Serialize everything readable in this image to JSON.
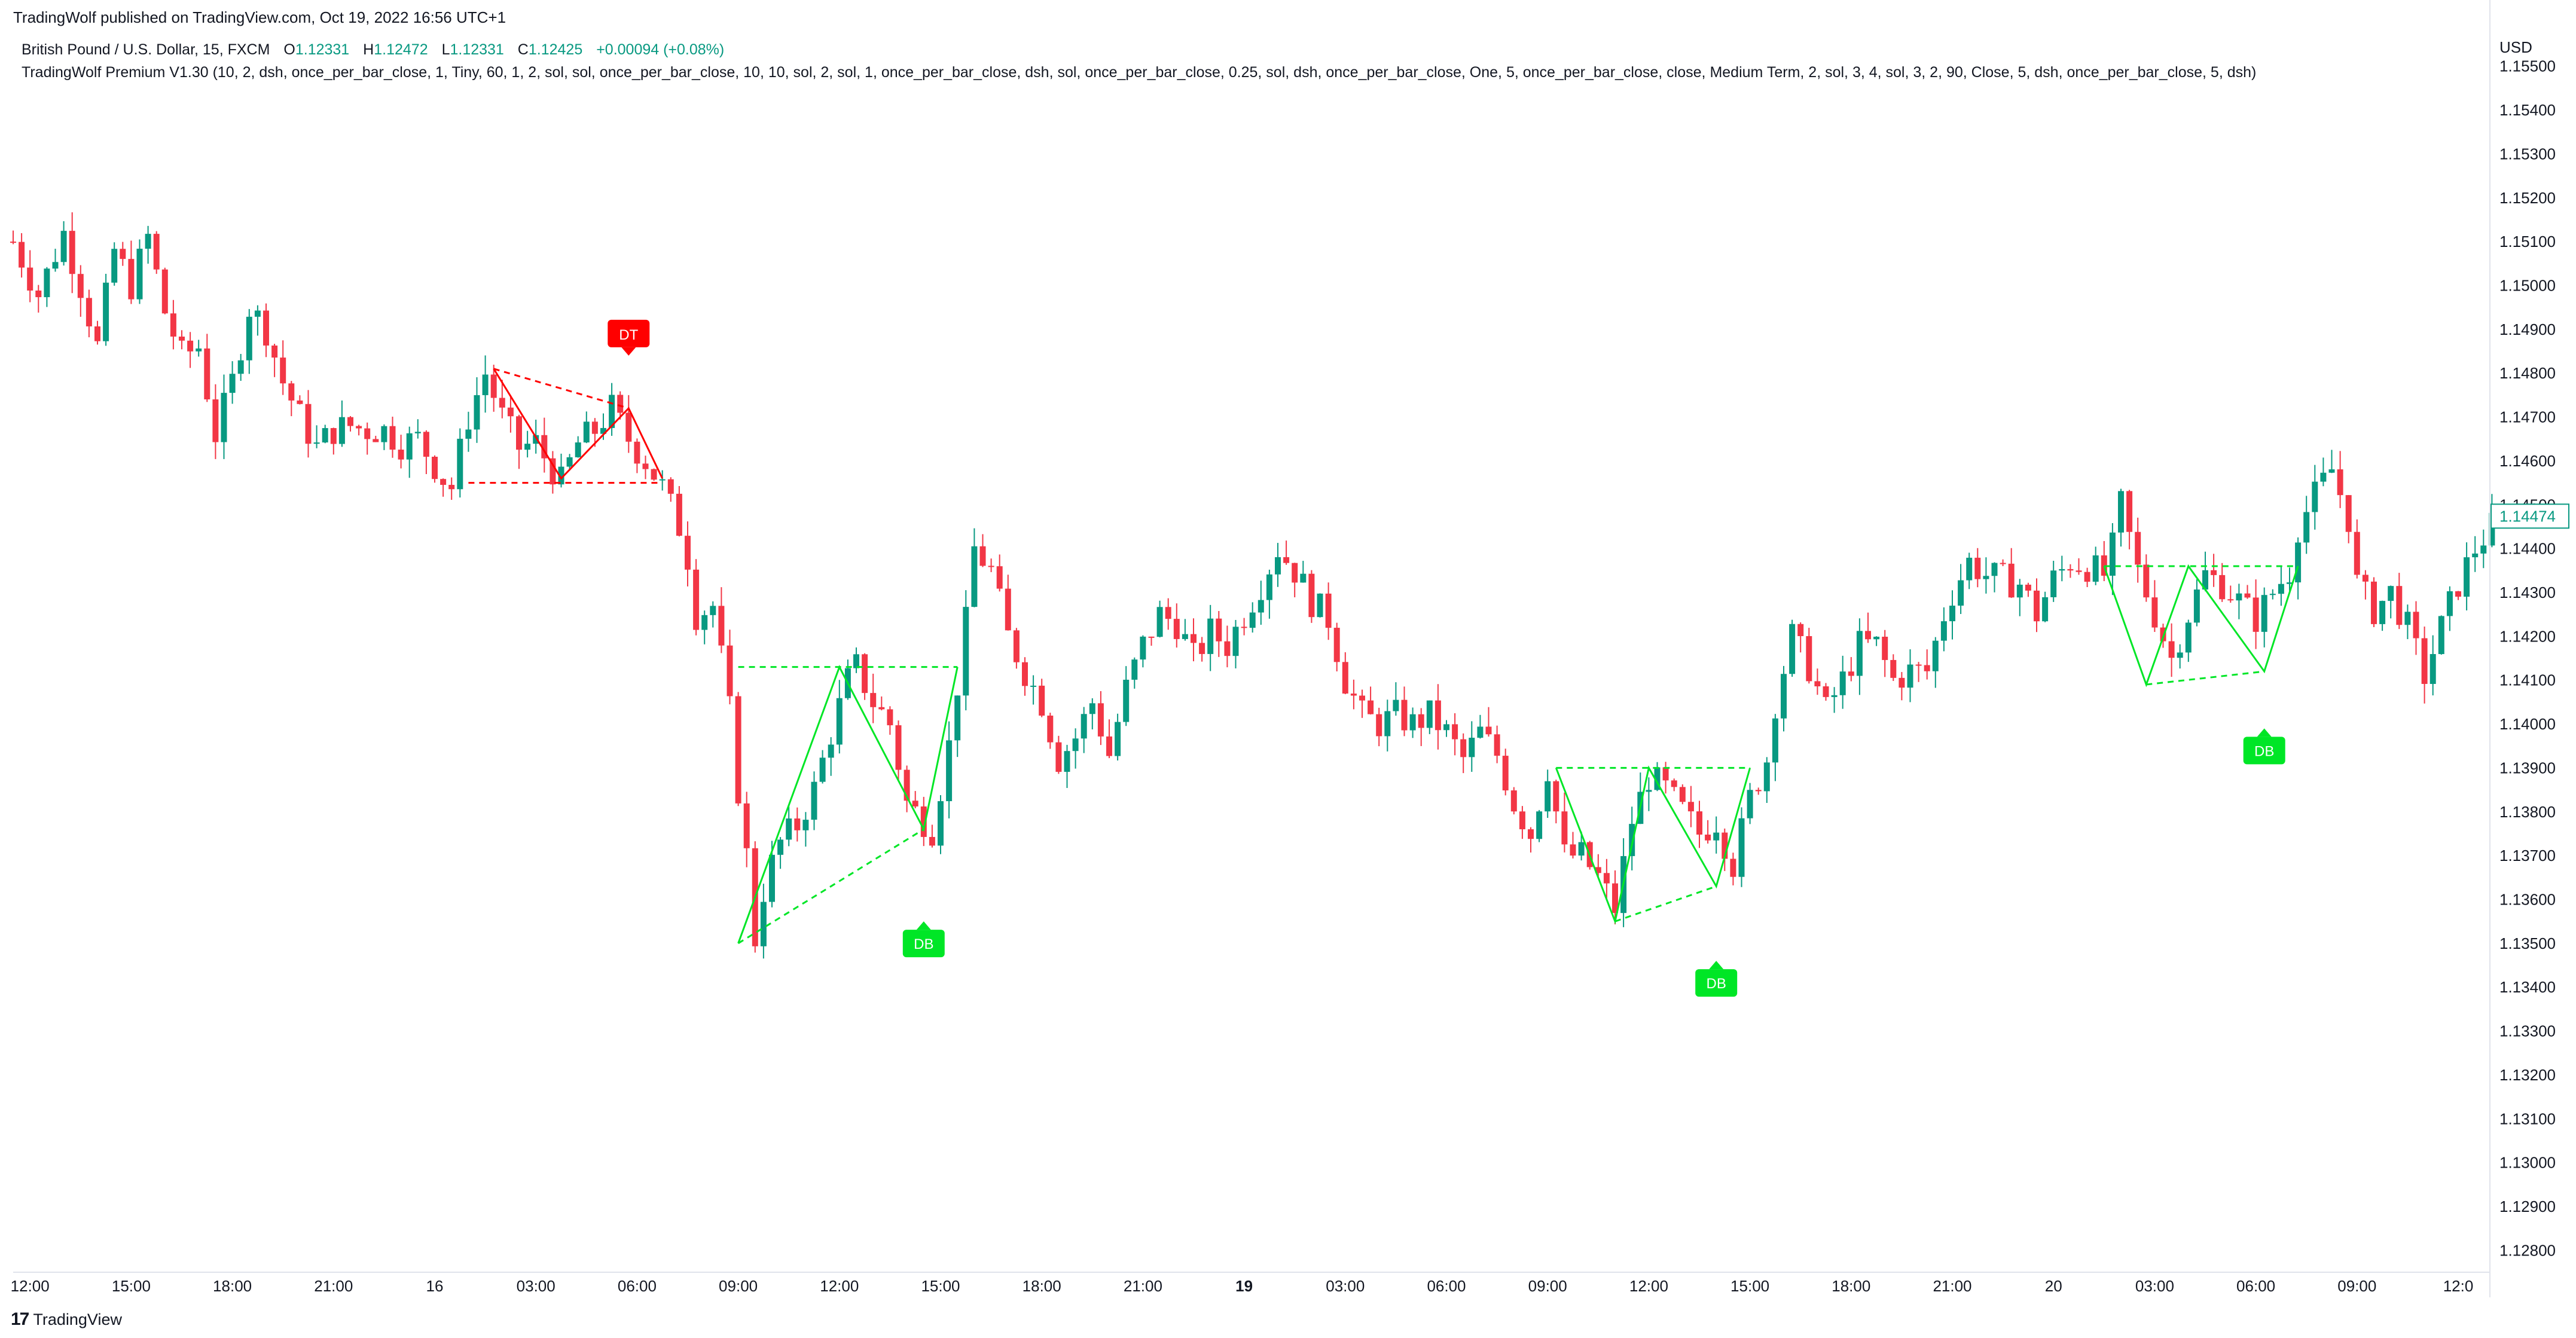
{
  "published_by": "TradingWolf published on TradingView.com, Oct 19, 2022 16:56 UTC+1",
  "symbol_line": "British Pound / U.S. Dollar, 15, FXCM",
  "ohlc": {
    "o_label": "O",
    "o": "1.12331",
    "h_label": "H",
    "h": "1.12472",
    "l_label": "L",
    "l": "1.12331",
    "c_label": "C",
    "c": "1.12425",
    "change": "+0.00094 (+0.08%)"
  },
  "indicator_line": "TradingWolf Premium V1.30 (10, 2, dsh, once_per_bar_close, 1, Tiny, 60, 1, 2, sol, sol, once_per_bar_close, 10, 10, sol, 2, sol, 1, once_per_bar_close, dsh, sol, once_per_bar_close, 0.25, sol, dsh, once_per_bar_close, One, 5, once_per_bar_close, close, Medium Term, 2, sol, 3, 4, sol, 3, 2, 90, Close, 5, dsh, once_per_bar_close, 5, dsh)",
  "footer_brand": "TradingView",
  "footer_logo": "17",
  "chart_data": {
    "type": "candlestick",
    "currency_label": "USD",
    "ylim": [
      1.1275,
      1.1561
    ],
    "y_ticks": [
      "1.15500",
      "1.15400",
      "1.15300",
      "1.15200",
      "1.15100",
      "1.15000",
      "1.14900",
      "1.14800",
      "1.14700",
      "1.14600",
      "1.14500",
      "1.14400",
      "1.14300",
      "1.14200",
      "1.14100",
      "1.14000",
      "1.13900",
      "1.13800",
      "1.13700",
      "1.13600",
      "1.13500",
      "1.13400",
      "1.13300",
      "1.13200",
      "1.13100",
      "1.13000",
      "1.12900",
      "1.12800"
    ],
    "x_ticks": [
      {
        "label": "12:00",
        "bar": 2,
        "bold": false
      },
      {
        "label": "15:00",
        "bar": 14,
        "bold": false
      },
      {
        "label": "18:00",
        "bar": 26,
        "bold": false
      },
      {
        "label": "21:00",
        "bar": 38,
        "bold": false
      },
      {
        "label": "16",
        "bar": 50,
        "bold": false
      },
      {
        "label": "03:00",
        "bar": 62,
        "bold": false
      },
      {
        "label": "06:00",
        "bar": 74,
        "bold": false
      },
      {
        "label": "09:00",
        "bar": 86,
        "bold": false
      },
      {
        "label": "12:00",
        "bar": 98,
        "bold": false
      },
      {
        "label": "15:00",
        "bar": 110,
        "bold": false
      },
      {
        "label": "18:00",
        "bar": 122,
        "bold": false
      },
      {
        "label": "21:00",
        "bar": 134,
        "bold": false
      },
      {
        "label": "19",
        "bar": 146,
        "bold": true
      },
      {
        "label": "03:00",
        "bar": 158,
        "bold": false
      },
      {
        "label": "06:00",
        "bar": 170,
        "bold": false
      },
      {
        "label": "09:00",
        "bar": 182,
        "bold": false
      },
      {
        "label": "12:00",
        "bar": 194,
        "bold": false
      },
      {
        "label": "15:00",
        "bar": 206,
        "bold": false
      },
      {
        "label": "18:00",
        "bar": 218,
        "bold": false
      },
      {
        "label": "21:00",
        "bar": 230,
        "bold": false
      },
      {
        "label": "20",
        "bar": 242,
        "bold": false
      },
      {
        "label": "03:00",
        "bar": 254,
        "bold": false
      },
      {
        "label": "06:00",
        "bar": 266,
        "bold": false
      },
      {
        "label": "09:00",
        "bar": 278,
        "bold": false
      },
      {
        "label": "12:0",
        "bar": 290,
        "bold": false
      }
    ],
    "last_price": "1.14474",
    "colors": {
      "up": "#089981",
      "down": "#f23645",
      "bull_pattern": "#00e626",
      "bear_pattern": "#ff0000",
      "grid_text": "#131722"
    },
    "path_points": [
      [
        0,
        1.151
      ],
      [
        3,
        1.1498
      ],
      [
        6,
        1.1512
      ],
      [
        8,
        1.15
      ],
      [
        10,
        1.1486
      ],
      [
        12,
        1.1508
      ],
      [
        14,
        1.15
      ],
      [
        16,
        1.1511
      ],
      [
        18,
        1.1494
      ],
      [
        20,
        1.1484
      ],
      [
        22,
        1.1486
      ],
      [
        24,
        1.1466
      ],
      [
        26,
        1.1478
      ],
      [
        28,
        1.1495
      ],
      [
        30,
        1.149
      ],
      [
        32,
        1.1478
      ],
      [
        34,
        1.147
      ],
      [
        36,
        1.1463
      ],
      [
        38,
        1.1467
      ],
      [
        40,
        1.1468
      ],
      [
        42,
        1.1467
      ],
      [
        44,
        1.1467
      ],
      [
        46,
        1.1464
      ],
      [
        48,
        1.1465
      ],
      [
        51,
        1.1456
      ],
      [
        52,
        1.1454
      ],
      [
        54,
        1.147
      ],
      [
        56,
        1.148
      ],
      [
        58,
        1.147
      ],
      [
        60,
        1.1463
      ],
      [
        62,
        1.1464
      ],
      [
        65,
        1.1455
      ],
      [
        67,
        1.1464
      ],
      [
        69,
        1.1467
      ],
      [
        71,
        1.1472
      ],
      [
        73,
        1.1465
      ],
      [
        75,
        1.146
      ],
      [
        77,
        1.1454
      ],
      [
        79,
        1.1445
      ],
      [
        80,
        1.1438
      ],
      [
        81,
        1.1425
      ],
      [
        83,
        1.1427
      ],
      [
        84,
        1.1415
      ],
      [
        85,
        1.1403
      ],
      [
        86,
        1.1385
      ],
      [
        87,
        1.137
      ],
      [
        88,
        1.1351
      ],
      [
        89,
        1.1362
      ],
      [
        90,
        1.1368
      ],
      [
        91,
        1.1373
      ],
      [
        93,
        1.1377
      ],
      [
        95,
        1.1385
      ],
      [
        97,
        1.1398
      ],
      [
        99,
        1.141
      ],
      [
        100,
        1.1413
      ],
      [
        102,
        1.1405
      ],
      [
        104,
        1.14
      ],
      [
        106,
        1.1382
      ],
      [
        108,
        1.1378
      ],
      [
        109,
        1.1376
      ],
      [
        111,
        1.1395
      ],
      [
        113,
        1.1423
      ],
      [
        114,
        1.144
      ],
      [
        116,
        1.1435
      ],
      [
        118,
        1.142
      ],
      [
        120,
        1.1412
      ],
      [
        122,
        1.1405
      ],
      [
        124,
        1.1392
      ],
      [
        126,
        1.1397
      ],
      [
        128,
        1.1405
      ],
      [
        130,
        1.1393
      ],
      [
        132,
        1.1408
      ],
      [
        134,
        1.1418
      ],
      [
        136,
        1.1425
      ],
      [
        138,
        1.1423
      ],
      [
        140,
        1.1415
      ],
      [
        142,
        1.1421
      ],
      [
        144,
        1.1418
      ],
      [
        146,
        1.1425
      ],
      [
        148,
        1.1432
      ],
      [
        150,
        1.144
      ],
      [
        152,
        1.1435
      ],
      [
        154,
        1.1428
      ],
      [
        156,
        1.1424
      ],
      [
        158,
        1.141
      ],
      [
        160,
        1.1402
      ],
      [
        162,
        1.14
      ],
      [
        164,
        1.1402
      ],
      [
        166,
        1.14
      ],
      [
        168,
        1.1402
      ],
      [
        170,
        1.1398
      ],
      [
        172,
        1.1392
      ],
      [
        174,
        1.1398
      ],
      [
        176,
        1.1393
      ],
      [
        178,
        1.1382
      ],
      [
        180,
        1.1375
      ],
      [
        182,
        1.139
      ],
      [
        184,
        1.137
      ],
      [
        186,
        1.137
      ],
      [
        188,
        1.1365
      ],
      [
        190,
        1.1358
      ],
      [
        192,
        1.1378
      ],
      [
        194,
        1.1388
      ],
      [
        196,
        1.1385
      ],
      [
        198,
        1.138
      ],
      [
        200,
        1.1375
      ],
      [
        202,
        1.1378
      ],
      [
        204,
        1.1368
      ],
      [
        206,
        1.1383
      ],
      [
        208,
        1.1392
      ],
      [
        209,
        1.1405
      ],
      [
        211,
        1.142
      ],
      [
        213,
        1.1413
      ],
      [
        215,
        1.1403
      ],
      [
        217,
        1.141
      ],
      [
        219,
        1.1418
      ],
      [
        221,
        1.1418
      ],
      [
        223,
        1.141
      ],
      [
        225,
        1.1412
      ],
      [
        227,
        1.1412
      ],
      [
        229,
        1.1425
      ],
      [
        230,
        1.143
      ],
      [
        232,
        1.1437
      ],
      [
        234,
        1.1434
      ],
      [
        236,
        1.1433
      ],
      [
        238,
        1.1432
      ],
      [
        240,
        1.1425
      ],
      [
        242,
        1.1433
      ],
      [
        244,
        1.1437
      ],
      [
        246,
        1.1436
      ],
      [
        248,
        1.1434
      ],
      [
        249,
        1.144
      ],
      [
        250,
        1.145
      ],
      [
        252,
        1.1435
      ],
      [
        254,
        1.1425
      ],
      [
        256,
        1.1415
      ],
      [
        258,
        1.1425
      ],
      [
        260,
        1.1434
      ],
      [
        262,
        1.1432
      ],
      [
        264,
        1.1428
      ],
      [
        266,
        1.1424
      ],
      [
        268,
        1.143
      ],
      [
        270,
        1.1435
      ],
      [
        271,
        1.1445
      ],
      [
        273,
        1.1452
      ],
      [
        275,
        1.1458
      ],
      [
        277,
        1.1447
      ],
      [
        278,
        1.1432
      ],
      [
        280,
        1.1426
      ],
      [
        282,
        1.143
      ],
      [
        284,
        1.1422
      ],
      [
        286,
        1.1411
      ],
      [
        288,
        1.1422
      ],
      [
        290,
        1.1432
      ],
      [
        292,
        1.144
      ],
      [
        294,
        1.1445
      ]
    ],
    "patterns": [
      {
        "type": "double-top",
        "label": "DT",
        "color": "bear",
        "zigzag": [
          [
            57,
            1.1481
          ],
          [
            65,
            1.1456
          ],
          [
            73,
            1.1472
          ],
          [
            77,
            1.1456
          ]
        ],
        "neckline": [
          [
            54,
            1.1455
          ],
          [
            77,
            1.1455
          ]
        ],
        "peak_line": [
          [
            57,
            1.1481
          ],
          [
            73,
            1.1472
          ]
        ],
        "badge": {
          "bar": 73,
          "price": 1.1484,
          "position": "above"
        }
      },
      {
        "type": "double-bottom",
        "label": "DB",
        "color": "bull",
        "zigzag": [
          [
            86,
            1.135
          ],
          [
            98,
            1.1413
          ],
          [
            108,
            1.1376
          ],
          [
            112,
            1.1413
          ]
        ],
        "neckline": [
          [
            86,
            1.1413
          ],
          [
            112,
            1.1413
          ]
        ],
        "trough_line": [
          [
            86,
            1.135
          ],
          [
            108,
            1.1376
          ]
        ],
        "badge": {
          "bar": 108,
          "price": 1.1355,
          "position": "below"
        }
      },
      {
        "type": "double-bottom",
        "label": "DB",
        "color": "bull",
        "zigzag": [
          [
            183,
            1.139
          ],
          [
            190,
            1.1355
          ],
          [
            194,
            1.139
          ],
          [
            202,
            1.1363
          ],
          [
            206,
            1.139
          ]
        ],
        "neckline": [
          [
            183,
            1.139
          ],
          [
            206,
            1.139
          ]
        ],
        "trough_line": [
          [
            190,
            1.1355
          ],
          [
            202,
            1.1363
          ]
        ],
        "badge": {
          "bar": 202,
          "price": 1.1346,
          "position": "below"
        }
      },
      {
        "type": "double-bottom",
        "label": "DB",
        "color": "bull",
        "zigzag": [
          [
            248,
            1.1436
          ],
          [
            253,
            1.1409
          ],
          [
            258,
            1.1436
          ],
          [
            267,
            1.1412
          ],
          [
            271,
            1.1436
          ]
        ],
        "neckline": [
          [
            248,
            1.1436
          ],
          [
            271,
            1.1436
          ]
        ],
        "trough_line": [
          [
            253,
            1.1409
          ],
          [
            267,
            1.1412
          ]
        ],
        "badge": {
          "bar": 267,
          "price": 1.1399,
          "position": "below"
        }
      }
    ]
  }
}
